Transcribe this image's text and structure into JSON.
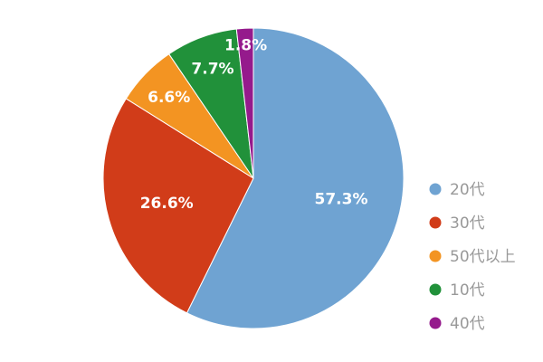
{
  "chart_data": {
    "type": "pie",
    "title": "",
    "start_angle_deg": 0,
    "direction": "clockwise",
    "legend_position": "right",
    "slices": [
      {
        "name": "20代",
        "value": 57.3,
        "label": "57.3%",
        "color": "#6fa3d2"
      },
      {
        "name": "30代",
        "value": 26.6,
        "label": "26.6%",
        "color": "#d13c19"
      },
      {
        "name": "50代以上",
        "value": 6.6,
        "label": "6.6%",
        "color": "#f39422"
      },
      {
        "name": "10代",
        "value": 7.7,
        "label": "7.7%",
        "color": "#21913a"
      },
      {
        "name": "40代",
        "value": 1.8,
        "label": "1.8%",
        "color": "#951a8c"
      }
    ],
    "legend_order": [
      0,
      1,
      2,
      3,
      4
    ]
  }
}
